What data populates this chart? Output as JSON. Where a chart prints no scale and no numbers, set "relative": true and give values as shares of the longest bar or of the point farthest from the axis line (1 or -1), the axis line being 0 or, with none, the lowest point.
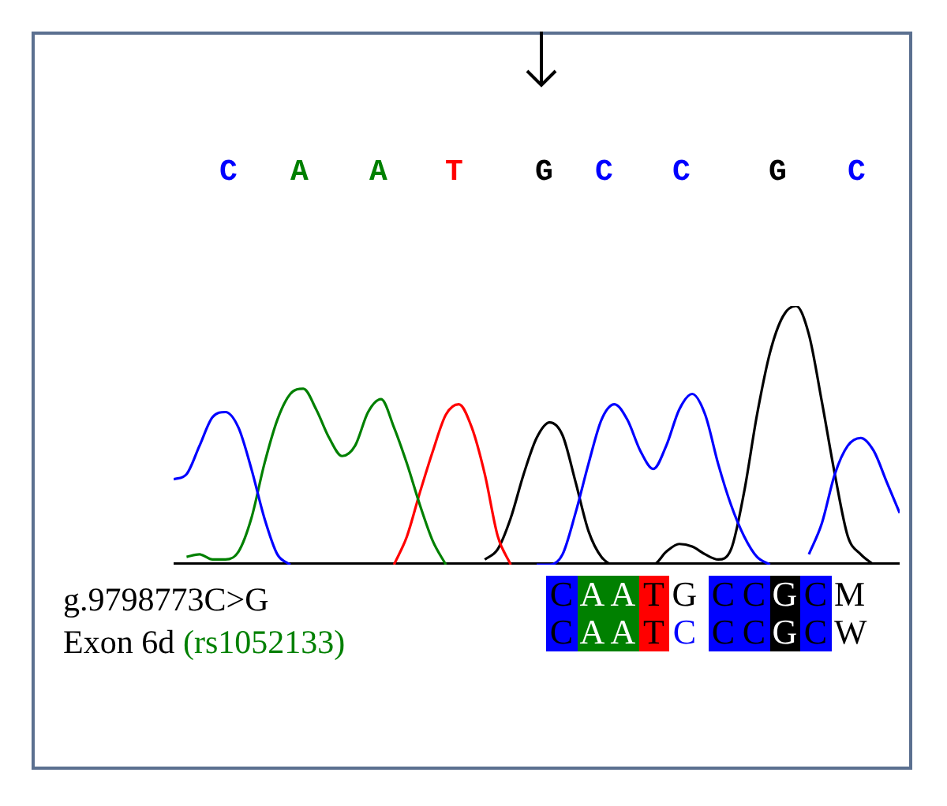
{
  "chart_data": {
    "type": "line",
    "relative": true,
    "grid": false,
    "legend": false,
    "tick_labels": false,
    "marker": "none",
    "line_style": "solid",
    "categories": [
      null,
      null,
      null,
      null,
      null,
      null,
      null,
      null,
      null,
      null,
      null,
      null,
      null,
      null,
      null,
      null,
      null,
      null,
      null,
      null,
      null,
      null,
      null,
      null,
      null,
      null,
      null,
      null,
      null,
      null,
      null,
      null,
      null,
      null,
      null,
      null,
      null,
      null,
      null,
      null,
      null,
      null,
      null,
      null,
      null,
      null,
      null,
      null,
      null,
      null,
      null,
      null,
      null,
      null,
      null,
      null,
      null
    ],
    "series": [
      {
        "color": "#0000ff",
        "values": [
          0.33,
          0.35,
          0.46,
          0.57,
          0.59,
          0.53,
          0.37,
          0.18,
          0.04,
          0,
          null,
          null,
          null,
          null,
          null,
          null,
          null,
          null,
          null,
          null,
          null,
          null,
          null,
          null,
          null,
          null,
          null,
          null,
          0,
          0,
          0.04,
          0.2,
          0.39,
          0.56,
          0.62,
          0.56,
          0.44,
          0.37,
          0.46,
          0.6,
          0.66,
          0.58,
          0.39,
          0.23,
          0.11,
          0.03,
          0,
          null,
          null,
          0.04,
          0.16,
          0.35,
          0.46,
          0.49,
          0.44,
          0.32,
          0.2
        ]
      },
      {
        "color": "#008000",
        "values": [
          null,
          0.03,
          0.04,
          0.02,
          0.02,
          0.05,
          0.18,
          0.39,
          0.56,
          0.66,
          0.68,
          0.6,
          0.49,
          0.42,
          0.46,
          0.59,
          0.64,
          0.53,
          0.39,
          0.23,
          0.09,
          0,
          null,
          null,
          null,
          null,
          null,
          null,
          null,
          null,
          null,
          null,
          null,
          null,
          null,
          null,
          null,
          null,
          null,
          null,
          null,
          null,
          null,
          null,
          null,
          null,
          null,
          null,
          null,
          null,
          null,
          null,
          null,
          null,
          null,
          null,
          null
        ]
      },
      {
        "color": "#ff0000",
        "values": [
          null,
          null,
          null,
          null,
          null,
          null,
          null,
          null,
          null,
          null,
          null,
          null,
          null,
          null,
          null,
          null,
          null,
          0,
          0.11,
          0.28,
          0.44,
          0.58,
          0.62,
          0.53,
          0.35,
          0.11,
          0,
          null,
          null,
          null,
          null,
          null,
          null,
          null,
          null,
          null,
          null,
          null,
          null,
          null,
          null,
          null,
          null,
          null,
          null,
          null,
          null,
          null,
          null,
          null,
          null,
          null,
          null,
          null,
          null,
          null,
          null
        ]
      },
      {
        "color": "#000000",
        "values": [
          null,
          null,
          null,
          null,
          null,
          null,
          null,
          null,
          null,
          null,
          null,
          null,
          null,
          null,
          null,
          null,
          null,
          null,
          null,
          null,
          null,
          null,
          null,
          null,
          0.02,
          0.06,
          0.18,
          0.35,
          0.49,
          0.55,
          0.5,
          0.32,
          0.13,
          0.03,
          0,
          0,
          0,
          0,
          0.05,
          0.08,
          0.07,
          0.04,
          0.02,
          0.06,
          0.28,
          0.58,
          0.82,
          0.96,
          1,
          0.89,
          0.63,
          0.35,
          0.11,
          0.04,
          0,
          null,
          null
        ]
      }
    ],
    "annotations": [
      "C A A T G C C G C",
      "g.9798773C>G",
      "Exon 6d",
      "(rs1052133)",
      "CAATG CCGCM",
      "CAATC CCGCW"
    ]
  }
}
